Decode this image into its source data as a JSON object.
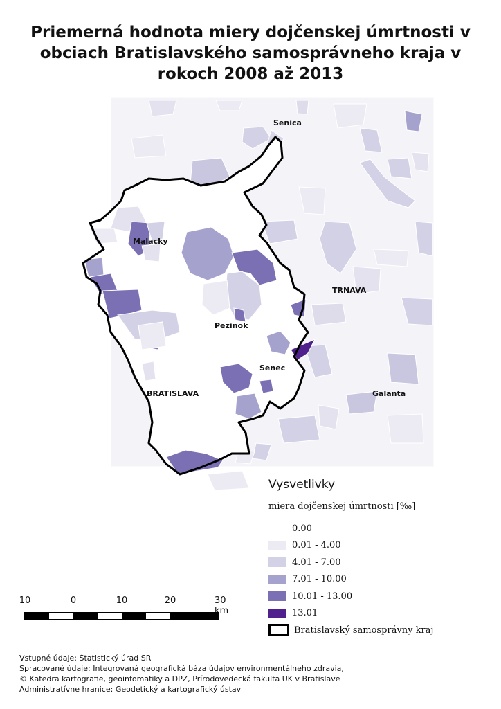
{
  "title": "Priemerná hodnota miery dojčenskej úmrtnosti v obciach Bratislavského samosprávneho kraja v rokoch 2008 až 2013",
  "places": {
    "senica": "Senica",
    "malacky": "Malacky",
    "trnava": "TRNAVA",
    "pezinok": "Pezinok",
    "senec": "Senec",
    "bratislava": "BRATISLAVA",
    "galanta": "Galanta"
  },
  "legend": {
    "title": "Vysvetlivky",
    "subtitle": "miera dojčenskej úmrtnosti [‰]",
    "classes": [
      {
        "label": "0.00",
        "color": "#ffffff"
      },
      {
        "label": "0.01 - 4.00",
        "color": "#ecebf3"
      },
      {
        "label": "4.01 - 7.00",
        "color": "#d3d1e6"
      },
      {
        "label": "7.01 - 10.00",
        "color": "#a5a2cd"
      },
      {
        "label": "10.01 - 13.00",
        "color": "#7c70b4"
      },
      {
        "label": "13.01 -",
        "color": "#50218c"
      }
    ],
    "boundary_label": "Bratislavský samosprávny kraj"
  },
  "scalebar": {
    "ticks": [
      "10",
      "0",
      "10",
      "20",
      "30 km"
    ]
  },
  "credits": [
    "Vstupné údaje: Štatistický úrad SR",
    "Spracované údaje: Integrovaná geografická báza údajov environmentálneho zdravia,",
    "© Katedra kartografie, geoinfomatiky a DPZ, Prírodovedecká fakulta UK v Bratislave",
    "Administratívne hranice: Geodetický a kartografický ústav"
  ]
}
